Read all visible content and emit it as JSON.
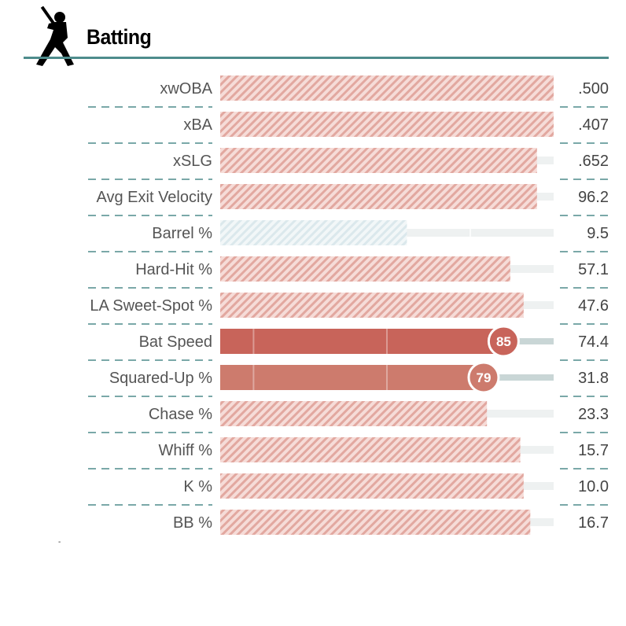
{
  "header": {
    "title": "Batting",
    "icon": "batter-silhouette-icon"
  },
  "footnote": "-",
  "colors": {
    "accent_rule": "#4e8c8c",
    "high_percentile": "#c8645a",
    "mid_percentile": "#cd7b6d",
    "low_percentile": "#a9c9d4",
    "track": "#eef1f1",
    "track_dark": "#c9d6d6",
    "divider": "#4e8c8c"
  },
  "chart_data": {
    "type": "bar",
    "title": "Batting",
    "xlim": [
      0,
      100
    ],
    "categories": [
      "xwOBA",
      "xBA",
      "xSLG",
      "Avg Exit Velocity",
      "Barrel %",
      "Hard-Hit %",
      "LA Sweet-Spot %",
      "Bat Speed",
      "Squared-Up %",
      "Chase %",
      "Whiff %",
      "K %",
      "BB %"
    ],
    "values": [
      100,
      100,
      95,
      95,
      56,
      87,
      91,
      85,
      79,
      80,
      90,
      91,
      93
    ],
    "value_labels": [
      ".500",
      ".407",
      ".652",
      "96.2",
      "9.5",
      "57.1",
      "47.6",
      "74.4",
      "31.8",
      "23.3",
      "15.7",
      "10.0",
      "16.7"
    ],
    "highlighted": [
      false,
      false,
      false,
      false,
      false,
      false,
      false,
      true,
      true,
      false,
      false,
      false,
      false
    ],
    "percentile_badges": [
      "",
      "",
      "",
      "",
      "",
      "",
      "",
      "85",
      "79",
      "",
      "",
      "",
      ""
    ]
  }
}
